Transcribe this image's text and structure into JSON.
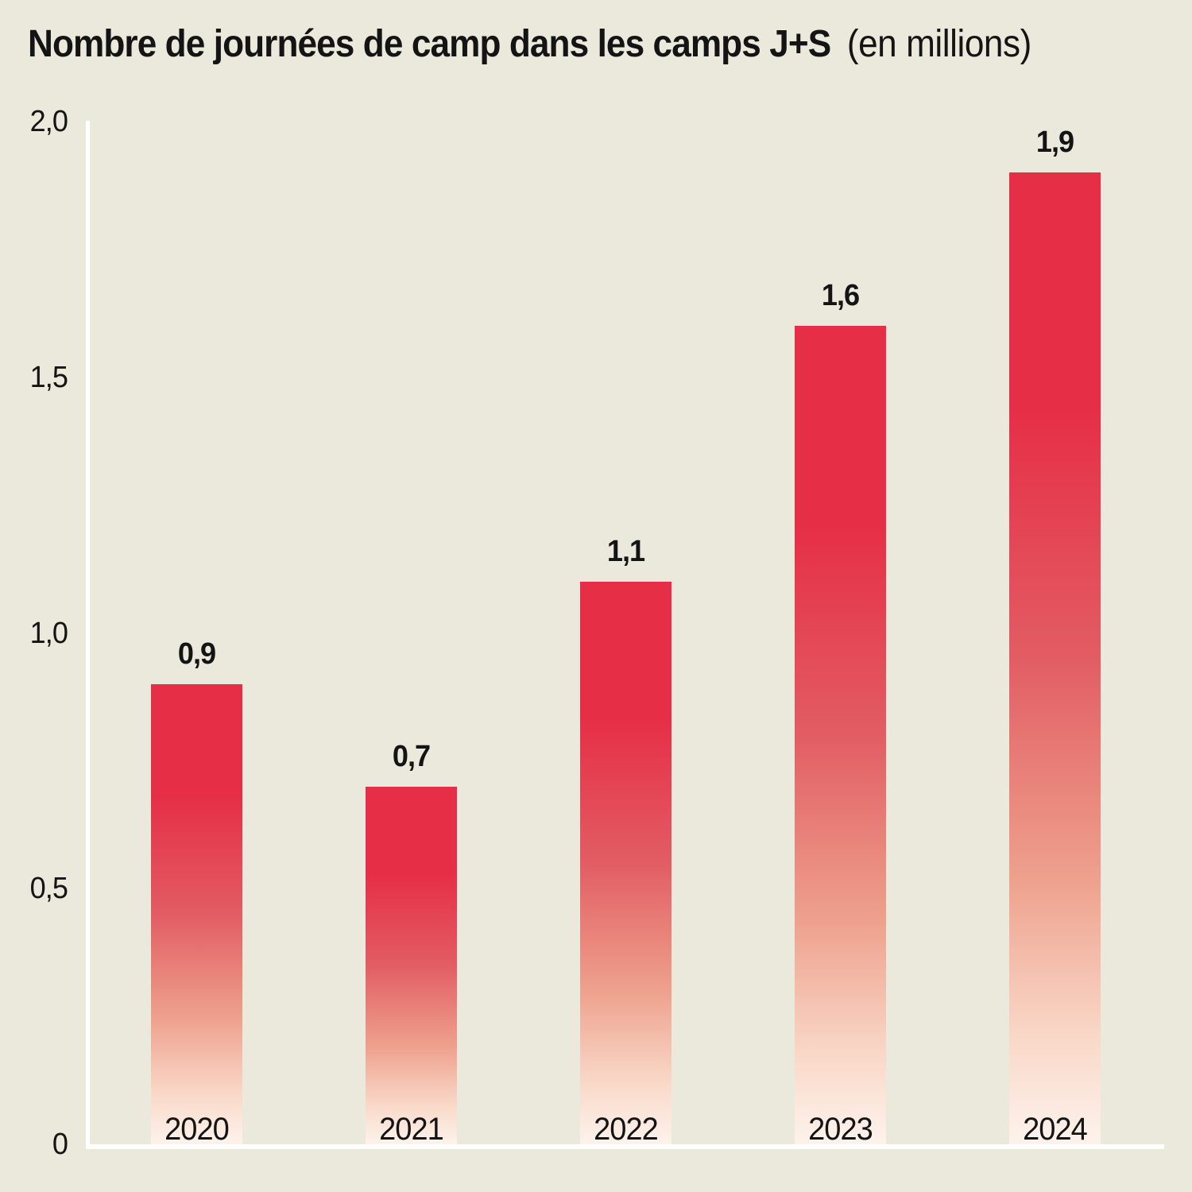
{
  "title": {
    "main": "Nombre de journées de camp dans les camps J+S",
    "suffix": "(en millions)"
  },
  "colors": {
    "background": "#ebe8dc",
    "bar_red": "#e62e46",
    "bar_fade_end": "#fdf3ec",
    "axis_line": "#ffffff",
    "text": "#141414"
  },
  "chart_data": {
    "type": "bar",
    "title": "Nombre de journées de camp dans les camps J+S",
    "subtitle": "(en millions)",
    "categories": [
      "2020",
      "2021",
      "2022",
      "2023",
      "2024"
    ],
    "values": [
      0.9,
      0.7,
      1.1,
      1.6,
      1.9
    ],
    "value_labels": [
      "0,9",
      "0,7",
      "1,1",
      "1,6",
      "1,9"
    ],
    "xlabel": "",
    "ylabel": "",
    "ylim": [
      0,
      2.0
    ],
    "y_ticks": [
      {
        "value": 0.0,
        "label": "0"
      },
      {
        "value": 0.5,
        "label": "0,5"
      },
      {
        "value": 1.0,
        "label": "1,0"
      },
      {
        "value": 1.5,
        "label": "1,5"
      },
      {
        "value": 2.0,
        "label": "2,0"
      }
    ],
    "grid": false,
    "legend": false,
    "bar_gradient": [
      "#e62e46",
      "#fdf3ec"
    ]
  }
}
